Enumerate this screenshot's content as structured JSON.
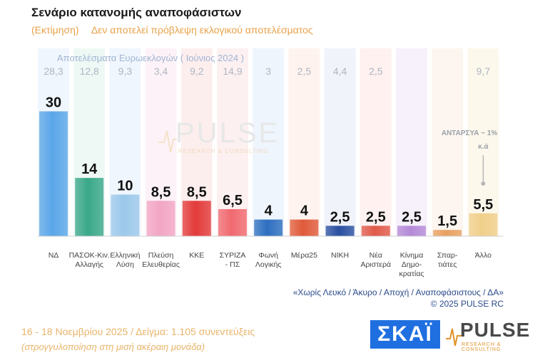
{
  "header": {
    "title": "Σενάριο κατανομής αναποφάσιστων",
    "estimate_label": "(Εκτίμηση)",
    "disclaimer": "Δεν αποτελεί πρόβλεψη εκλογικού αποτελέσματος"
  },
  "chart_data": {
    "type": "bar",
    "title": "Σενάριο κατανομής αναποφάσιστων",
    "reference_title": "Αποτελέσματα Ευρωεκλογών ( Ιούνιος 2024 )",
    "categories": [
      "ΝΔ",
      "ΠΑΣΟΚ-Κιν. Αλλαγής",
      "Ελληνική Λύση",
      "Πλεύση Ελευθερίας",
      "ΚΚΕ",
      "ΣΥΡΙΖΑ - ΠΣ",
      "Φωνή Λογικής",
      "Μέρα25",
      "ΝΙΚΗ",
      "Νέα Αριστερά",
      "Κίνημα Δημο-κρατίας",
      "Σπαρ-τιάτες",
      "Άλλο"
    ],
    "category_lines": [
      [
        "ΝΔ"
      ],
      [
        "ΠΑΣΟΚ-Κιν.",
        "Αλλαγής"
      ],
      [
        "Ελληνική",
        "Λύση"
      ],
      [
        "Πλεύση",
        "Ελευθερίας"
      ],
      [
        "ΚΚΕ"
      ],
      [
        "ΣΥΡΙΖΑ",
        "- ΠΣ"
      ],
      [
        "Φωνή",
        "Λογικής"
      ],
      [
        "Μέρα25"
      ],
      [
        "ΝΙΚΗ"
      ],
      [
        "Νέα",
        "Αριστερά"
      ],
      [
        "Κίνημα",
        "Δημο-",
        "κρατίας"
      ],
      [
        "Σπαρ-",
        "τιάτες"
      ],
      [
        "Άλλο"
      ]
    ],
    "series": [
      {
        "values": [
          30,
          14,
          10,
          8.5,
          8.5,
          6.5,
          4,
          4,
          2.5,
          2.5,
          2.5,
          1.5,
          5.5
        ],
        "labels": [
          "30",
          "14",
          "10",
          "8,5",
          "8,5",
          "6,5",
          "4",
          "4",
          "2,5",
          "2,5",
          "2,5",
          "1,5",
          "5,5"
        ]
      },
      {
        "values": [
          28.3,
          12.8,
          9.3,
          3.4,
          9.2,
          14.9,
          3,
          2.5,
          4.4,
          2.5,
          null,
          null,
          9.7
        ],
        "labels": [
          "28,3",
          "12,8",
          "9,3",
          "3,4",
          "9,2",
          "14,9",
          "3",
          "2,5",
          "4,4",
          "2,5",
          "",
          "",
          "9,7"
        ]
      }
    ],
    "colors": [
      "#5aa6e8",
      "#3aa88a",
      "#9cc8ea",
      "#f2a6c4",
      "#e33a3a",
      "#f06a70",
      "#2d6fbf",
      "#e05a3a",
      "#2a4fa0",
      "#e05a4a",
      "#b48ad8",
      "#e8a060",
      "#f0cf8a"
    ],
    "column_bg_colors": [
      "#e6f0fb",
      "#e3f3ec",
      "#e6f0fb",
      "#fbe9f1",
      "#fce3e3",
      "#fce6e7",
      "#e4eefb",
      "#fdebe4",
      "#e6ebf6",
      "#fde7e4",
      "#f1e8f9",
      "#fcefe4",
      "#fcf4e0"
    ],
    "ylim": [
      0,
      34
    ],
    "annotation": "ΑΝΤΑΡΣΥΑ ~ 1%",
    "annotation_sub": "κ.ά"
  },
  "watermark": {
    "name": "PULSE",
    "sub": "RESEARCH & CONSULTING"
  },
  "footer": {
    "note": "«Χωρίς Λευκό / Άκυρο / Αποχή / Αναποφάσιστους / ΔΑ»",
    "copyright": "©  2025  PULSE RC",
    "survey_info": "16 - 18 Νοεμβρίου 2025  /  Δείγμα:  1.105 συνεντεύξεις",
    "rounding": "(στρογγυλοποίηση στη μισή ακέραιη μονάδα)"
  },
  "logos": {
    "broadcaster": "ΣΚΑΪ",
    "pollster": "PULSE",
    "pollster_sub": "RESEARCH & CONSULTING"
  }
}
